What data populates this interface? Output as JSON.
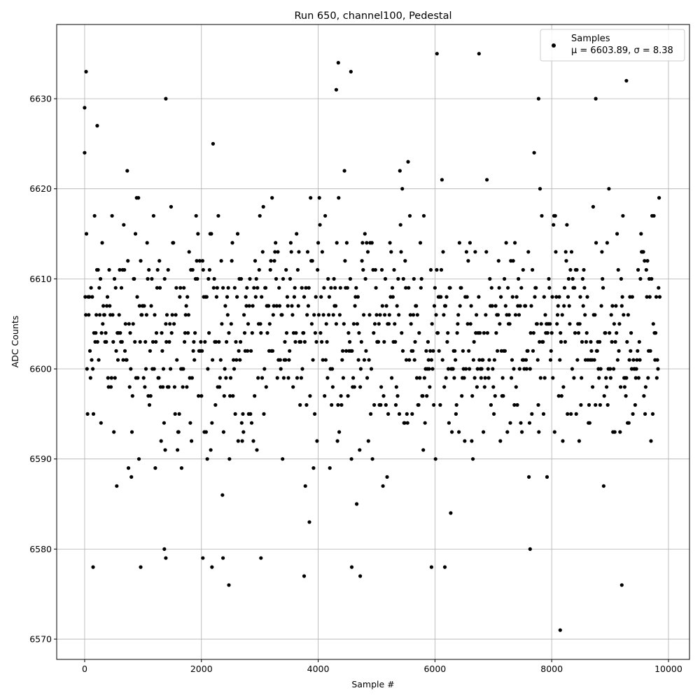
{
  "chart_data": {
    "type": "scatter",
    "title": "Run 650, channel100, Pedestal",
    "xlabel": "Sample #",
    "ylabel": "ADC Counts",
    "xlim": [
      -479,
      10360
    ],
    "ylim": [
      6567.75,
      6638.24
    ],
    "xticks": [
      0,
      2000,
      4000,
      6000,
      8000,
      10000
    ],
    "yticks": [
      6570,
      6580,
      6590,
      6600,
      6610,
      6620,
      6630
    ],
    "grid": true,
    "legend_position": "top-right",
    "marker_color": "#000000",
    "series": [
      {
        "name": "Samples",
        "stats_label": "μ = 6603.89, σ = 8.38",
        "mean": 6603.89,
        "sigma": 8.38,
        "x_range": [
          0,
          9850
        ],
        "notable_points": [
          [
            25,
            6633
          ],
          [
            0,
            6629
          ],
          [
            215,
            6627
          ],
          [
            1390,
            6630
          ],
          [
            4310,
            6631
          ],
          [
            4345,
            6634
          ],
          [
            4560,
            6633
          ],
          [
            6035,
            6635
          ],
          [
            6755,
            6635
          ],
          [
            9280,
            6632
          ],
          [
            7775,
            6630
          ],
          [
            8755,
            6630
          ],
          [
            8145,
            6571
          ],
          [
            9200,
            6576
          ],
          [
            2470,
            6576
          ],
          [
            3760,
            6577
          ],
          [
            4720,
            6577
          ],
          [
            7630,
            6580
          ],
          [
            145,
            6578
          ],
          [
            960,
            6578
          ],
          [
            2180,
            6578
          ],
          [
            4575,
            6578
          ],
          [
            5940,
            6578
          ],
          [
            6170,
            6578
          ],
          [
            1365,
            6580
          ],
          [
            1390,
            6579
          ],
          [
            3020,
            6579
          ],
          [
            2025,
            6579
          ],
          [
            2370,
            6579
          ]
        ]
      }
    ]
  }
}
